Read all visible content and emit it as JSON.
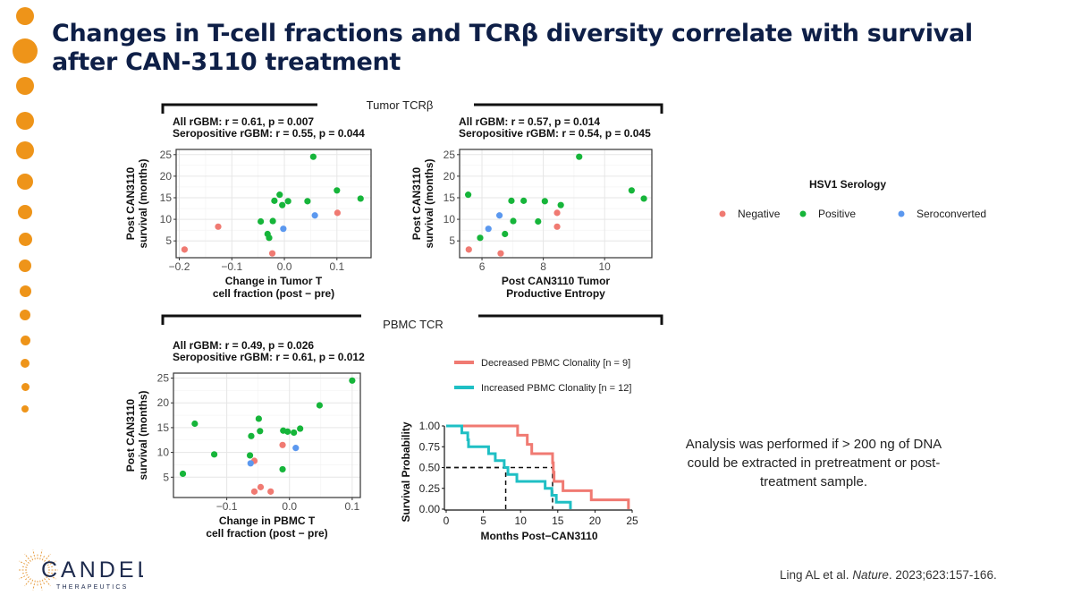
{
  "slide": {
    "title": "Changes in T-cell fractions and TCRβ diversity correlate with survival after CAN-3110 treatment",
    "section_tumor": "Tumor TCRβ",
    "section_pbmc": "PBMC TCR",
    "note": "Analysis was performed if > 200 ng of DNA could be extracted in pretreatment or post-treatment sample.",
    "citation_prefix": "Ling AL et al. ",
    "citation_journal": "Nature",
    "citation_suffix": ". 2023;623:157-166.",
    "logo_name": "CANDEL",
    "logo_sub": "THERAPEUTICS",
    "accent_color": "#ee9419",
    "title_color": "#0e1f47"
  },
  "legend": {
    "title": "HSV1 Serology",
    "items": [
      {
        "label": "Negative",
        "color": "#f07a72"
      },
      {
        "label": "Positive",
        "color": "#16b53a"
      },
      {
        "label": "Seroconverted",
        "color": "#5b98ef"
      }
    ]
  },
  "chart_data": [
    {
      "type": "scatter",
      "annotation": [
        "All rGBM: r = 0.61, p = 0.007",
        "Seropositive rGBM: r = 0.55, p = 0.044"
      ],
      "xlabel": [
        "Change in Tumor T",
        "cell fraction (post − pre)"
      ],
      "ylabel": [
        "Post CAN3110",
        "survival (months)"
      ],
      "xlim": [
        -0.206,
        0.165
      ],
      "ylim": [
        1.1,
        26.2
      ],
      "xticks": [
        -0.2,
        -0.1,
        0.0,
        0.1
      ],
      "xtick_labels": [
        "−0.2",
        "−0.1",
        "0.0",
        "0.1"
      ],
      "yticks": [
        5,
        10,
        15,
        20,
        25
      ],
      "ytick_labels": [
        "5",
        "10",
        "15",
        "20",
        "25"
      ],
      "grid": true,
      "points": [
        {
          "x": 0.055,
          "y": 24.5,
          "group": "Positive"
        },
        {
          "x": 0.1,
          "y": 16.7,
          "group": "Positive"
        },
        {
          "x": 0.145,
          "y": 14.8,
          "group": "Positive"
        },
        {
          "x": -0.009,
          "y": 15.7,
          "group": "Positive"
        },
        {
          "x": -0.019,
          "y": 14.3,
          "group": "Positive"
        },
        {
          "x": 0.007,
          "y": 14.2,
          "group": "Positive"
        },
        {
          "x": -0.004,
          "y": 13.3,
          "group": "Positive"
        },
        {
          "x": 0.044,
          "y": 14.2,
          "group": "Positive"
        },
        {
          "x": -0.045,
          "y": 9.5,
          "group": "Positive"
        },
        {
          "x": -0.022,
          "y": 9.6,
          "group": "Positive"
        },
        {
          "x": -0.032,
          "y": 6.6,
          "group": "Positive"
        },
        {
          "x": -0.029,
          "y": 5.7,
          "group": "Positive"
        },
        {
          "x": 0.101,
          "y": 11.5,
          "group": "Negative"
        },
        {
          "x": -0.126,
          "y": 8.3,
          "group": "Negative"
        },
        {
          "x": -0.19,
          "y": 3.0,
          "group": "Negative"
        },
        {
          "x": -0.023,
          "y": 2.1,
          "group": "Negative"
        },
        {
          "x": 0.058,
          "y": 10.9,
          "group": "Seroconverted"
        },
        {
          "x": -0.002,
          "y": 7.8,
          "group": "Seroconverted"
        }
      ]
    },
    {
      "type": "scatter",
      "annotation": [
        "All rGBM: r = 0.57, p = 0.014",
        "Seropositive rGBM: r = 0.54, p = 0.045"
      ],
      "xlabel": [
        "Post CAN3110 Tumor",
        "Productive Entropy"
      ],
      "ylabel": [
        "Post CAN3110",
        "survival (months)"
      ],
      "xlim": [
        5.27,
        11.54
      ],
      "ylim": [
        1.1,
        26.2
      ],
      "xticks": [
        6,
        8,
        10
      ],
      "xtick_labels": [
        "6",
        "8",
        "10"
      ],
      "yticks": [
        5,
        10,
        15,
        20,
        25
      ],
      "ytick_labels": [
        "5",
        "10",
        "15",
        "20",
        "25"
      ],
      "grid": true,
      "points": [
        {
          "x": 9.17,
          "y": 24.5,
          "group": "Positive"
        },
        {
          "x": 10.88,
          "y": 16.7,
          "group": "Positive"
        },
        {
          "x": 11.28,
          "y": 14.8,
          "group": "Positive"
        },
        {
          "x": 5.55,
          "y": 15.7,
          "group": "Positive"
        },
        {
          "x": 6.96,
          "y": 14.3,
          "group": "Positive"
        },
        {
          "x": 7.36,
          "y": 14.3,
          "group": "Positive"
        },
        {
          "x": 8.05,
          "y": 14.2,
          "group": "Positive"
        },
        {
          "x": 8.57,
          "y": 13.3,
          "group": "Positive"
        },
        {
          "x": 7.02,
          "y": 9.6,
          "group": "Positive"
        },
        {
          "x": 7.83,
          "y": 9.5,
          "group": "Positive"
        },
        {
          "x": 6.75,
          "y": 6.6,
          "group": "Positive"
        },
        {
          "x": 5.94,
          "y": 5.7,
          "group": "Positive"
        },
        {
          "x": 8.45,
          "y": 11.5,
          "group": "Negative"
        },
        {
          "x": 8.45,
          "y": 8.3,
          "group": "Negative"
        },
        {
          "x": 5.57,
          "y": 3.0,
          "group": "Negative"
        },
        {
          "x": 6.61,
          "y": 2.1,
          "group": "Negative"
        },
        {
          "x": 6.57,
          "y": 10.9,
          "group": "Seroconverted"
        },
        {
          "x": 6.21,
          "y": 7.8,
          "group": "Seroconverted"
        }
      ]
    },
    {
      "type": "scatter",
      "annotation": [
        "All rGBM: r = 0.49, p = 0.026",
        "Seropositive rGBM: r = 0.61, p = 0.012"
      ],
      "xlabel": [
        "Change in PBMC T",
        "cell fraction (post − pre)"
      ],
      "ylabel": [
        "Post CAN3110",
        "survival (months)"
      ],
      "xlim": [
        -0.185,
        0.113
      ],
      "ylim": [
        0.9,
        26.0
      ],
      "xticks": [
        -0.1,
        0.0,
        0.1
      ],
      "xtick_labels": [
        "−0.1",
        "0.0",
        "0.1"
      ],
      "yticks": [
        5,
        10,
        15,
        20,
        25
      ],
      "ytick_labels": [
        "5",
        "10",
        "15",
        "20",
        "25"
      ],
      "grid": true,
      "points": [
        {
          "x": 0.1,
          "y": 24.5,
          "group": "Positive"
        },
        {
          "x": 0.048,
          "y": 19.5,
          "group": "Positive"
        },
        {
          "x": -0.151,
          "y": 15.8,
          "group": "Positive"
        },
        {
          "x": -0.049,
          "y": 16.8,
          "group": "Positive"
        },
        {
          "x": -0.047,
          "y": 14.3,
          "group": "Positive"
        },
        {
          "x": -0.061,
          "y": 13.3,
          "group": "Positive"
        },
        {
          "x": -0.01,
          "y": 14.4,
          "group": "Positive"
        },
        {
          "x": -0.003,
          "y": 14.2,
          "group": "Positive"
        },
        {
          "x": 0.007,
          "y": 14.0,
          "group": "Positive"
        },
        {
          "x": 0.017,
          "y": 14.8,
          "group": "Positive"
        },
        {
          "x": -0.12,
          "y": 9.6,
          "group": "Positive"
        },
        {
          "x": -0.063,
          "y": 9.4,
          "group": "Positive"
        },
        {
          "x": -0.011,
          "y": 6.6,
          "group": "Positive"
        },
        {
          "x": -0.17,
          "y": 5.7,
          "group": "Positive"
        },
        {
          "x": -0.011,
          "y": 11.5,
          "group": "Negative"
        },
        {
          "x": -0.056,
          "y": 8.3,
          "group": "Negative"
        },
        {
          "x": -0.046,
          "y": 3.0,
          "group": "Negative"
        },
        {
          "x": -0.056,
          "y": 2.1,
          "group": "Negative"
        },
        {
          "x": -0.03,
          "y": 2.1,
          "group": "Negative"
        },
        {
          "x": -0.062,
          "y": 7.8,
          "group": "Seroconverted"
        },
        {
          "x": 0.01,
          "y": 10.9,
          "group": "Seroconverted"
        }
      ]
    },
    {
      "type": "line",
      "subtype": "kaplan-meier",
      "xlabel": "Months Post−CAN3110",
      "ylabel": "Survival Probability",
      "xlim": [
        0,
        25
      ],
      "ylim": [
        0,
        1
      ],
      "xticks": [
        0,
        5,
        10,
        15,
        20,
        25
      ],
      "xtick_labels": [
        "0",
        "5",
        "10",
        "15",
        "20",
        "25"
      ],
      "yticks": [
        0,
        0.25,
        0.5,
        0.75,
        1.0
      ],
      "ytick_labels": [
        "0.00",
        "0.25",
        "0.50",
        "0.75",
        "1.00"
      ],
      "grid": false,
      "median_lines": [
        8.0,
        14.3
      ],
      "series": [
        {
          "name": "Decreased PBMC Clonality [n = 9]",
          "color": "#f07a72",
          "steps": [
            [
              0,
              1.0
            ],
            [
              9.6,
              0.889
            ],
            [
              10.9,
              0.778
            ],
            [
              11.5,
              0.667
            ],
            [
              14.3,
              0.556
            ],
            [
              14.4,
              0.444
            ],
            [
              14.5,
              0.333
            ],
            [
              15.7,
              0.222
            ],
            [
              19.5,
              0.111
            ],
            [
              24.5,
              0.0
            ]
          ]
        },
        {
          "name": "Increased PBMC Clonality [n = 12]",
          "color": "#1fbfc4",
          "steps": [
            [
              0,
              1.0
            ],
            [
              2.1,
              0.917
            ],
            [
              2.9,
              0.833
            ],
            [
              3.0,
              0.75
            ],
            [
              5.7,
              0.667
            ],
            [
              6.6,
              0.583
            ],
            [
              7.8,
              0.5
            ],
            [
              8.3,
              0.417
            ],
            [
              9.5,
              0.333
            ],
            [
              13.3,
              0.25
            ],
            [
              14.2,
              0.167
            ],
            [
              14.8,
              0.083
            ],
            [
              16.7,
              0.0
            ]
          ]
        }
      ]
    }
  ]
}
